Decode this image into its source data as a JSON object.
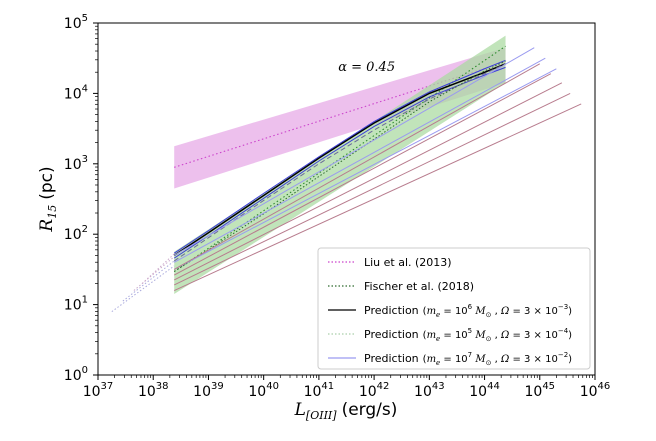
{
  "chart_data": {
    "type": "line",
    "scale": "log-log",
    "xlim": [
      37,
      46
    ],
    "ylim": [
      0,
      5
    ],
    "xlabel": {
      "main": "L",
      "sub": "[OIII]",
      "unit": "(erg/s)"
    },
    "ylabel": {
      "main": "R",
      "sub": "15",
      "unit": "(pc)"
    },
    "x_ticks": [
      {
        "base": "10",
        "exp": "37"
      },
      {
        "base": "10",
        "exp": "38"
      },
      {
        "base": "10",
        "exp": "39"
      },
      {
        "base": "10",
        "exp": "40"
      },
      {
        "base": "10",
        "exp": "41"
      },
      {
        "base": "10",
        "exp": "42"
      },
      {
        "base": "10",
        "exp": "43"
      },
      {
        "base": "10",
        "exp": "44"
      },
      {
        "base": "10",
        "exp": "45"
      },
      {
        "base": "10",
        "exp": "46"
      }
    ],
    "y_ticks": [
      {
        "base": "10",
        "exp": "0"
      },
      {
        "base": "10",
        "exp": "1"
      },
      {
        "base": "10",
        "exp": "2"
      },
      {
        "base": "10",
        "exp": "3"
      },
      {
        "base": "10",
        "exp": "4"
      },
      {
        "base": "10",
        "exp": "5"
      }
    ],
    "annotation": {
      "text": "α = 0.45",
      "x": 41.35,
      "y": 4.32
    },
    "fit_bands": [
      {
        "name": "Liu et al. (2013)",
        "color": "#cc44cc",
        "fill": "#e6a8e6",
        "x": [
          38.38,
          44.38
        ],
        "center_log_y": [
          2.95,
          4.45
        ],
        "lower_log_y": [
          2.65,
          4.15
        ],
        "upper_log_y": [
          3.25,
          4.65
        ]
      },
      {
        "name": "Fischer et al. (2018)",
        "color": "#2e8b2e",
        "fill": "#a9d9a0",
        "x": [
          38.38,
          44.38
        ],
        "center_log_y": [
          1.47,
          4.67
        ],
        "lower_log_y": [
          1.15,
          4.15
        ],
        "upper_log_y": [
          1.75,
          4.82
        ]
      }
    ],
    "series": [
      {
        "name": "Prediction me1e6 Ω3e-3",
        "color": "#000000",
        "style": "solid",
        "x": [
          38.38,
          39.0,
          40.0,
          41.0,
          42.0,
          43.0,
          44.0,
          44.38
        ],
        "y": [
          1.7,
          2.02,
          2.55,
          3.08,
          3.58,
          4.0,
          4.3,
          4.42
        ]
      },
      {
        "name": "blue-1",
        "color": "#3b3bd8",
        "style": "solid",
        "x": [
          38.38,
          39.0,
          40.0,
          41.0,
          42.0,
          43.0,
          44.0,
          44.38
        ],
        "y": [
          1.73,
          2.05,
          2.58,
          3.1,
          3.6,
          4.02,
          4.35,
          4.47
        ]
      },
      {
        "name": "blue-2",
        "color": "#3b3bd8",
        "style": "solid",
        "x": [
          38.38,
          39.0,
          40.0,
          41.0,
          42.0,
          43.0,
          44.0,
          44.38
        ],
        "y": [
          1.66,
          1.98,
          2.51,
          3.04,
          3.53,
          3.95,
          4.26,
          4.37
        ]
      },
      {
        "name": "dashed-gray",
        "color": "#6a6a9a",
        "style": "dashed",
        "x": [
          38.38,
          39.0,
          40.0,
          41.0,
          42.0,
          43.0,
          44.0,
          44.38
        ],
        "y": [
          1.62,
          1.95,
          2.48,
          3.0,
          3.48,
          3.92,
          4.28,
          4.42
        ]
      },
      {
        "name": "dotted-green",
        "color": "#2e6b2e",
        "style": "dotted",
        "x": [
          38.38,
          39.0,
          40.0,
          41.0,
          42.0,
          43.0,
          44.0,
          44.38
        ],
        "y": [
          1.47,
          1.78,
          2.29,
          2.82,
          3.35,
          3.88,
          4.32,
          4.46
        ]
      },
      {
        "name": "faint-blue-1",
        "color": "#9a9af0",
        "style": "solid",
        "x": [
          38.38,
          44.9
        ],
        "y": [
          1.7,
          4.65
        ]
      },
      {
        "name": "faint-blue-2",
        "color": "#9a9af0",
        "style": "solid",
        "x": [
          38.38,
          45.1
        ],
        "y": [
          1.6,
          4.5
        ]
      },
      {
        "name": "faint-blue-3",
        "color": "#9a9af0",
        "style": "solid",
        "x": [
          38.38,
          45.3
        ],
        "y": [
          1.5,
          4.35
        ]
      },
      {
        "name": "mauve-1",
        "color": "#b87c8e",
        "style": "solid",
        "x": [
          38.38,
          45.0
        ],
        "y": [
          1.5,
          4.42
        ]
      },
      {
        "name": "mauve-2",
        "color": "#b87c8e",
        "style": "solid",
        "x": [
          38.38,
          45.2
        ],
        "y": [
          1.42,
          4.28
        ]
      },
      {
        "name": "mauve-3",
        "color": "#b87c8e",
        "style": "solid",
        "x": [
          38.38,
          45.4
        ],
        "y": [
          1.35,
          4.15
        ]
      },
      {
        "name": "mauve-4",
        "color": "#b87c8e",
        "style": "solid",
        "x": [
          38.38,
          45.55
        ],
        "y": [
          1.28,
          4.0
        ]
      },
      {
        "name": "mauve-5",
        "color": "#b87c8e",
        "style": "solid",
        "x": [
          38.38,
          45.75
        ],
        "y": [
          1.2,
          3.85
        ]
      },
      {
        "name": "extrap-1",
        "color": "#aaaadd",
        "style": "dotted",
        "x": [
          37.25,
          38.38
        ],
        "y": [
          0.9,
          1.55
        ]
      },
      {
        "name": "extrap-2",
        "color": "#aaaadd",
        "style": "dotted",
        "x": [
          37.45,
          38.38
        ],
        "y": [
          1.05,
          1.62
        ]
      },
      {
        "name": "extrap-3",
        "color": "#ccaacc",
        "style": "dotted",
        "x": [
          37.65,
          38.38
        ],
        "y": [
          1.2,
          1.68
        ]
      },
      {
        "name": "extrap-4",
        "color": "#ccaacc",
        "style": "dotted",
        "x": [
          37.8,
          38.38
        ],
        "y": [
          1.3,
          1.72
        ]
      }
    ],
    "legend": {
      "position": "lower-right",
      "entries": [
        {
          "style": "dotted",
          "color": "#cc44cc",
          "label": "Liu et al. (2013)"
        },
        {
          "style": "dotted",
          "color": "#2e6b2e",
          "label": "Fischer et al. (2018)"
        },
        {
          "style": "solid",
          "color": "#000000",
          "label": "Prediction",
          "me_base": "10",
          "me_exp": "6",
          "omega_coef": "3",
          "omega_exp": "−3"
        },
        {
          "style": "dotted",
          "color": "#aacfaa",
          "label": "Prediction",
          "me_base": "10",
          "me_exp": "5",
          "omega_coef": "3",
          "omega_exp": "−4"
        },
        {
          "style": "solid",
          "color": "#9a9af0",
          "label": "Prediction",
          "me_base": "10",
          "me_exp": "7",
          "omega_coef": "3",
          "omega_exp": "−2"
        }
      ]
    }
  }
}
